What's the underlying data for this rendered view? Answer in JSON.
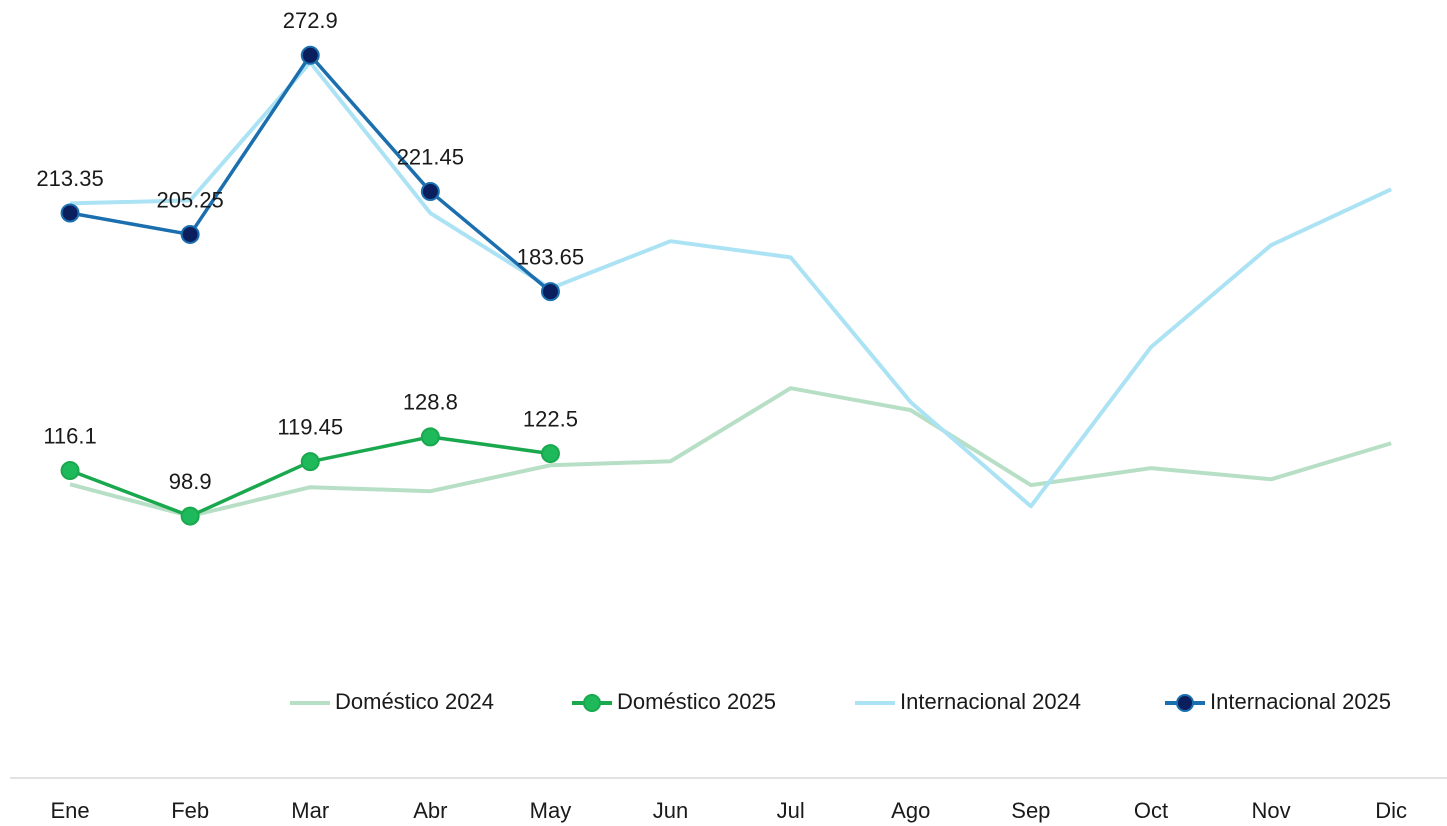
{
  "chart_data": {
    "type": "line",
    "categories": [
      "Ene",
      "Feb",
      "Mar",
      "Abr",
      "May",
      "Jun",
      "Jul",
      "Ago",
      "Sep",
      "Oct",
      "Nov",
      "Dic"
    ],
    "ylim": [
      0,
      290
    ],
    "legend": "bottom-right",
    "series": [
      {
        "name": "Doméstico 2024",
        "color": "#b7dfc6",
        "markers": false,
        "labels": false,
        "values": [
          110.9,
          98.9,
          109.8,
          108.3,
          118.1,
          119.6,
          147.2,
          138.9,
          110.6,
          117.0,
          112.8,
          126.4
        ]
      },
      {
        "name": "Internacional 2024",
        "color": "#ace3f4",
        "markers": false,
        "labels": false,
        "values": [
          217.0,
          218.1,
          270.2,
          213.3,
          184.9,
          202.7,
          196.6,
          141.9,
          102.6,
          162.7,
          201.2,
          222.3
        ]
      },
      {
        "name": "Doméstico 2025",
        "color": "#1aa84f",
        "marker_color": "#1db95a",
        "markers": true,
        "labels": true,
        "values": [
          116.1,
          98.9,
          119.45,
          128.8,
          122.5,
          null,
          null,
          null,
          null,
          null,
          null,
          null
        ]
      },
      {
        "name": "Internacional 2025",
        "color": "#1b6fae",
        "marker_color": "#0b1f5e",
        "markers": true,
        "labels": true,
        "values": [
          213.35,
          205.25,
          272.9,
          221.45,
          183.65,
          null,
          null,
          null,
          null,
          null,
          null,
          null
        ]
      }
    ]
  }
}
